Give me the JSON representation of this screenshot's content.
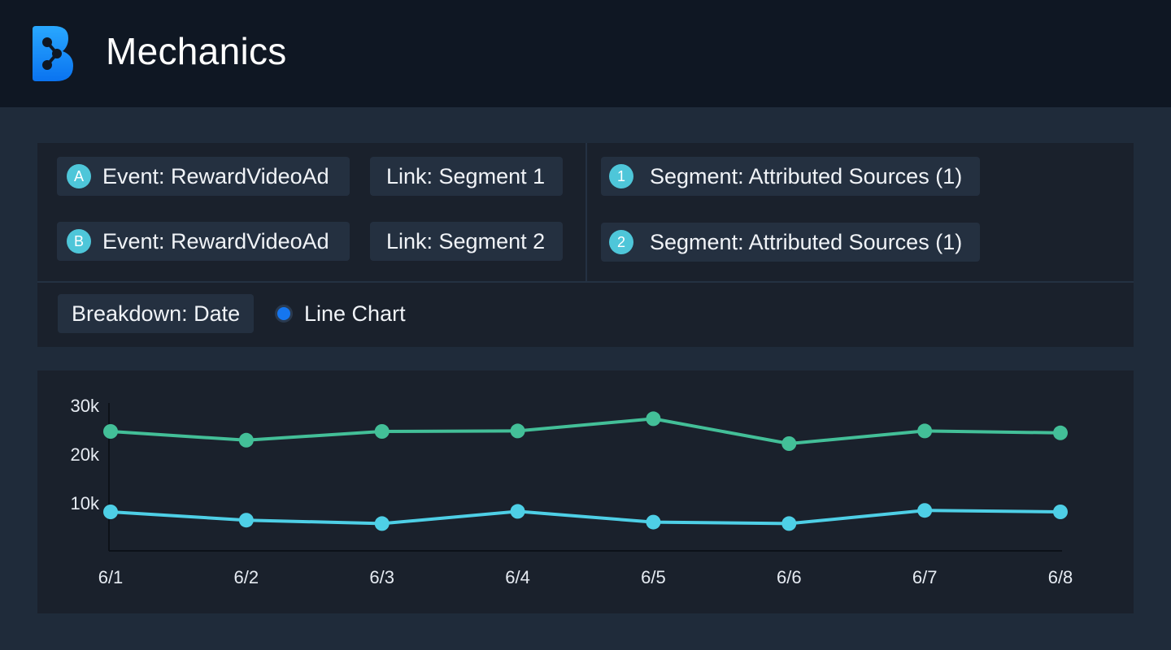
{
  "header": {
    "title": "Mechanics",
    "logo_icon": "brand-logo-icon",
    "logo_color": "#1a8cff"
  },
  "events": [
    {
      "badge": "A",
      "label": "Event: RewardVideoAd",
      "link": "Link: Segment 1"
    },
    {
      "badge": "B",
      "label": "Event: RewardVideoAd",
      "link": "Link: Segment 2"
    }
  ],
  "segments": [
    {
      "badge": "1",
      "label": "Segment: Attributed Sources (1)"
    },
    {
      "badge": "2",
      "label": "Segment: Attributed Sources (1)"
    }
  ],
  "breakdown": {
    "label": "Breakdown: Date"
  },
  "chart_type_option": {
    "label": "Line Chart",
    "selected": true
  },
  "colors": {
    "badge": "#4ec6d9",
    "series_a": "#43bf98",
    "series_b": "#4ecfe6",
    "radio": "#1576ef"
  },
  "chart_data": {
    "type": "line",
    "categories": [
      "6/1",
      "6/2",
      "6/3",
      "6/4",
      "6/5",
      "6/6",
      "6/7",
      "6/8"
    ],
    "y_ticks": [
      "10k",
      "20k",
      "30k"
    ],
    "ylim": [
      0,
      30000
    ],
    "series": [
      {
        "values": [
          24500,
          22700,
          24500,
          24600,
          27100,
          22000,
          24600,
          24200
        ]
      },
      {
        "values": [
          8000,
          6300,
          5600,
          8100,
          5900,
          5600,
          8300,
          8000
        ]
      }
    ],
    "xlabel": "",
    "ylabel": "",
    "grid": false
  }
}
